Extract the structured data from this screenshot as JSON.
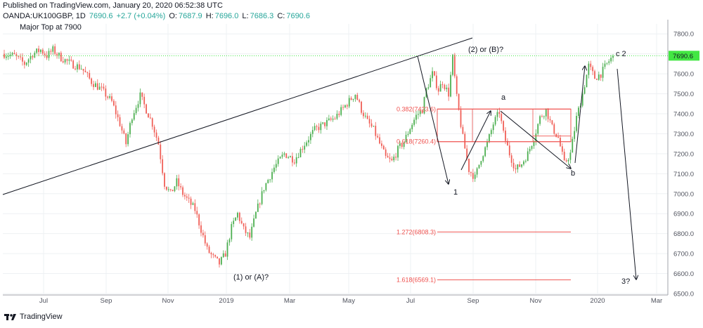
{
  "header": {
    "published": "Published on TradingView.com, January 20, 2020 06:52:38 UTC",
    "symbol": "OANDA:UK100GBP, 1D",
    "last": "7690.6",
    "change": "+2.7 (+0.04%)",
    "o_label": "O:",
    "o_value": "7687.9",
    "h_label": "H:",
    "h_value": "7696.0",
    "l_label": "L:",
    "l_value": "7686.3",
    "c_label": "C:",
    "c_value": "7690.6"
  },
  "footer": {
    "brand": "TradingView"
  },
  "colors": {
    "up": "#26a69a",
    "down": "#ef5350",
    "upCandle": "#4caf50",
    "downCandle": "#f05f57",
    "fib": "#ef5350",
    "price": "#43e743",
    "priceTag": "#43e743",
    "line": "#131722"
  },
  "chart_data": {
    "type": "candlestick",
    "ylim": [
      6500,
      7850
    ],
    "yticks": [
      6500,
      6600,
      6700,
      6800,
      6900,
      7000,
      7100,
      7200,
      7300,
      7400,
      7500,
      7600,
      7700,
      7800
    ],
    "xticks": [
      "Jul",
      "Sep",
      "Nov",
      "2019",
      "Mar",
      "May",
      "Jul",
      "Sep",
      "Nov",
      "2020",
      "Mar"
    ],
    "current_price": 7690.6,
    "close_path": [
      [
        0,
        7700
      ],
      [
        5,
        7690
      ],
      [
        10,
        7650
      ],
      [
        14,
        7700
      ],
      [
        18,
        7720
      ],
      [
        21,
        7690
      ],
      [
        24,
        7720
      ],
      [
        28,
        7680
      ],
      [
        33,
        7650
      ],
      [
        38,
        7630
      ],
      [
        43,
        7560
      ],
      [
        48,
        7520
      ],
      [
        53,
        7460
      ],
      [
        57,
        7350
      ],
      [
        60,
        7250
      ],
      [
        63,
        7390
      ],
      [
        67,
        7490
      ],
      [
        70,
        7420
      ],
      [
        73,
        7350
      ],
      [
        76,
        7250
      ],
      [
        79,
        7050
      ],
      [
        82,
        7000
      ],
      [
        85,
        7060
      ],
      [
        88,
        7000
      ],
      [
        91,
        6960
      ],
      [
        94,
        6920
      ],
      [
        97,
        6820
      ],
      [
        100,
        6720
      ],
      [
        103,
        6680
      ],
      [
        106,
        6650
      ],
      [
        109,
        6700
      ],
      [
        112,
        6830
      ],
      [
        115,
        6900
      ],
      [
        118,
        6820
      ],
      [
        121,
        6780
      ],
      [
        124,
        6900
      ],
      [
        128,
        7030
      ],
      [
        133,
        7130
      ],
      [
        138,
        7200
      ],
      [
        143,
        7170
      ],
      [
        148,
        7250
      ],
      [
        153,
        7320
      ],
      [
        158,
        7350
      ],
      [
        163,
        7380
      ],
      [
        168,
        7440
      ],
      [
        173,
        7500
      ],
      [
        176,
        7420
      ],
      [
        179,
        7360
      ],
      [
        182,
        7320
      ],
      [
        185,
        7250
      ],
      [
        188,
        7180
      ],
      [
        191,
        7160
      ],
      [
        194,
        7220
      ],
      [
        197,
        7260
      ],
      [
        200,
        7330
      ],
      [
        203,
        7390
      ],
      [
        206,
        7420
      ],
      [
        208,
        7520
      ],
      [
        211,
        7600
      ],
      [
        214,
        7520
      ],
      [
        216,
        7560
      ],
      [
        219,
        7500
      ],
      [
        221,
        7680
      ],
      [
        223,
        7480
      ],
      [
        226,
        7280
      ],
      [
        229,
        7120
      ],
      [
        232,
        7080
      ],
      [
        235,
        7180
      ],
      [
        238,
        7250
      ],
      [
        241,
        7350
      ],
      [
        244,
        7410
      ],
      [
        246,
        7300
      ],
      [
        249,
        7200
      ],
      [
        252,
        7120
      ],
      [
        255,
        7150
      ],
      [
        258,
        7200
      ],
      [
        261,
        7280
      ],
      [
        264,
        7380
      ],
      [
        267,
        7420
      ],
      [
        270,
        7330
      ],
      [
        273,
        7280
      ],
      [
        276,
        7150
      ],
      [
        279,
        7200
      ],
      [
        282,
        7380
      ],
      [
        285,
        7500
      ],
      [
        288,
        7640
      ],
      [
        291,
        7580
      ],
      [
        294,
        7600
      ],
      [
        297,
        7650
      ],
      [
        300,
        7690
      ]
    ],
    "fib_levels": [
      {
        "label": "0.382(7423.6)",
        "value": 7423.6
      },
      {
        "label": "0.618(7260.4)",
        "value": 7260.4
      },
      {
        "label": "1.272(6808.3)",
        "value": 6808.3
      },
      {
        "label": "1.618(6569.1)",
        "value": 6569.1
      }
    ],
    "annotations": [
      {
        "text": "Major Top at 7900"
      },
      {
        "text": "(2) or (B)?"
      },
      {
        "text": "(1) or (A)?"
      },
      {
        "text": "a"
      },
      {
        "text": "b"
      },
      {
        "text": "1"
      },
      {
        "text": "c 2"
      },
      {
        "text": "3?"
      }
    ]
  }
}
